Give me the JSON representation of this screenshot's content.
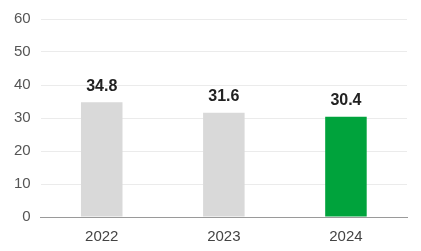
{
  "chart_data": {
    "type": "bar",
    "categories": [
      "2022",
      "2023",
      "2024"
    ],
    "values": [
      34.8,
      31.6,
      30.4
    ],
    "colors": [
      "#d9d9d9",
      "#d9d9d9",
      "#00a33c"
    ],
    "ylim": [
      0,
      60
    ],
    "yticks": [
      0,
      10,
      20,
      30,
      40,
      50,
      60
    ],
    "grid": true,
    "data_labels": true
  }
}
